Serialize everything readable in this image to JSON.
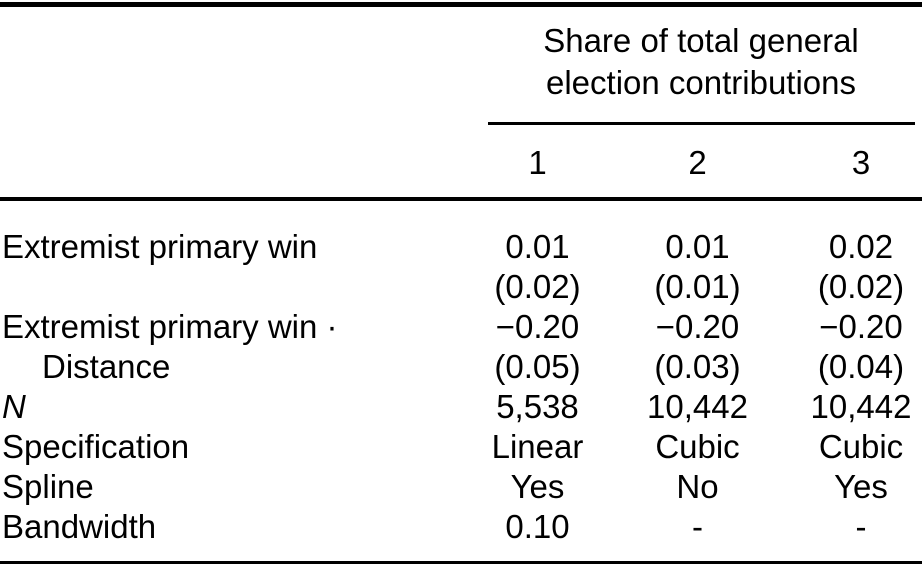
{
  "table": {
    "spanner_title": "Share of total general election contributions",
    "columns": [
      "1",
      "2",
      "3"
    ],
    "rows": [
      {
        "label": "Extremist primary win",
        "values": [
          "0.01",
          "0.01",
          "0.02"
        ]
      },
      {
        "label": "",
        "values": [
          "(0.02)",
          "(0.01)",
          "(0.02)"
        ]
      },
      {
        "label": "Extremist primary win ·",
        "values": [
          "−0.20",
          "−0.20",
          "−0.20"
        ]
      },
      {
        "label": "Distance",
        "values": [
          "(0.05)",
          "(0.03)",
          "(0.04)"
        ]
      },
      {
        "label": "N",
        "values": [
          "5,538",
          "10,442",
          "10,442"
        ]
      },
      {
        "label": "Specification",
        "values": [
          "Linear",
          "Cubic",
          "Cubic"
        ]
      },
      {
        "label": "Spline",
        "values": [
          "Yes",
          "No",
          "Yes"
        ]
      },
      {
        "label": "Bandwidth",
        "values": [
          "0.10",
          "-",
          "-"
        ]
      }
    ],
    "colors": {
      "text": "#000000",
      "background": "#ffffff",
      "rule": "#000000"
    }
  }
}
